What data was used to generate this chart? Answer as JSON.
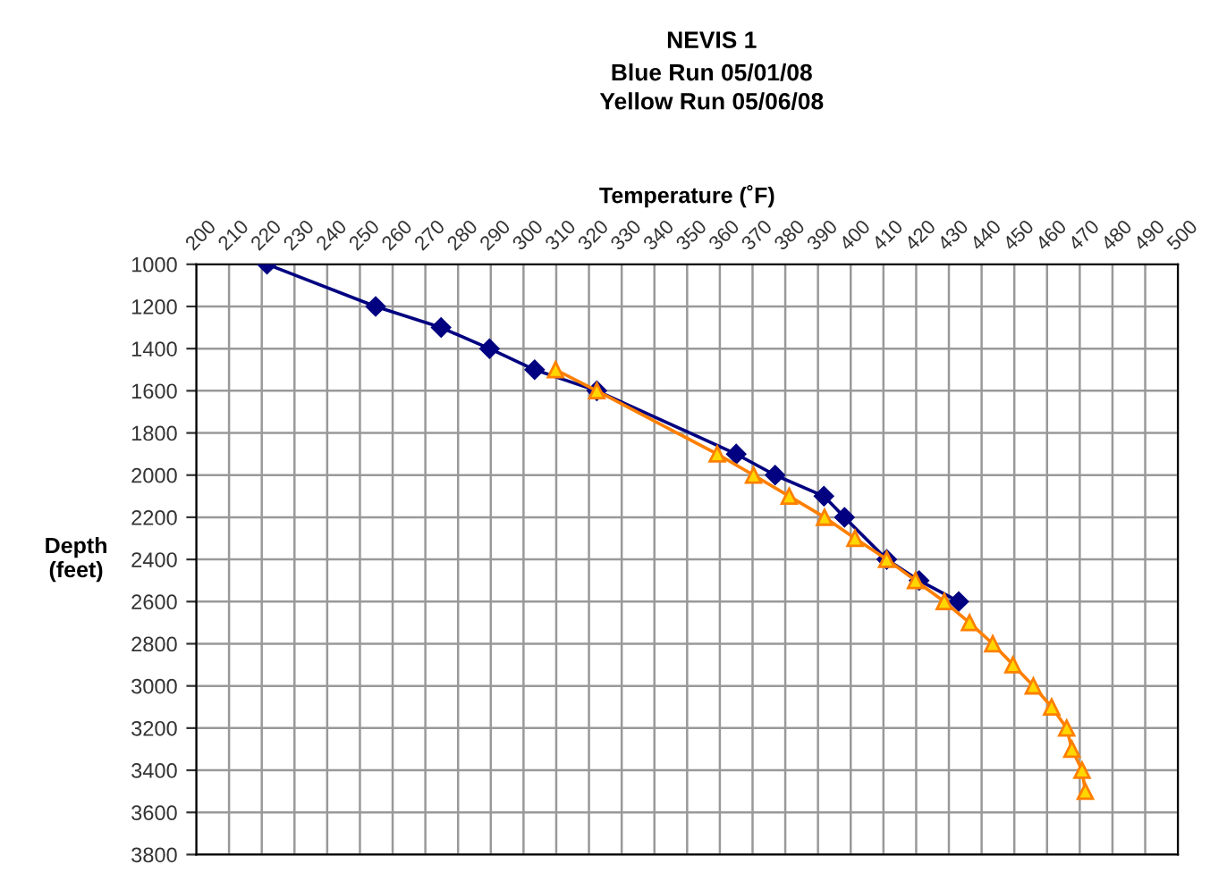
{
  "chart_data": {
    "type": "line",
    "title": "NEVIS 1",
    "subtitle": "Blue Run 05/01/08\nYellow Run 05/06/08",
    "xlabel": "Temperature (˚F)",
    "ylabel": "Depth\n(feet)",
    "series": [
      {
        "color": "#000080",
        "marker": "diamond",
        "x": [
          221.6,
          254.8,
          274.8,
          289.6,
          303.4,
          322.4,
          365,
          376.9,
          391.8,
          398.1,
          411,
          420.9,
          433
        ],
        "values": [
          1000,
          1200,
          1300,
          1400,
          1500,
          1600,
          1900,
          2000,
          2100,
          2200,
          2400,
          2500,
          2600
        ]
      },
      {
        "color": "#ff7f00",
        "marker": "triangle",
        "x": [
          309.8,
          322.4,
          359.2,
          370.3,
          381.2,
          392,
          401.3,
          411,
          419.8,
          428.6,
          436.3,
          443.4,
          449.6,
          455.8,
          461.4,
          466,
          467.6,
          470.7,
          471.7
        ],
        "values": [
          1500,
          1600,
          1900,
          2000,
          2100,
          2200,
          2300,
          2400,
          2500,
          2600,
          2700,
          2800,
          2900,
          3000,
          3100,
          3200,
          3300,
          3400,
          3500
        ]
      }
    ],
    "xlim": [
      200,
      500
    ],
    "xticks": [
      200,
      210,
      220,
      230,
      240,
      250,
      260,
      270,
      280,
      290,
      300,
      310,
      320,
      330,
      340,
      350,
      360,
      370,
      380,
      390,
      400,
      410,
      420,
      430,
      440,
      450,
      460,
      470,
      480,
      490,
      500
    ],
    "ylim": [
      3800,
      1000
    ],
    "yticks": [
      1000,
      1200,
      1400,
      1600,
      1800,
      2000,
      2200,
      2400,
      2600,
      2800,
      3000,
      3200,
      3400,
      3600,
      3800
    ],
    "grid": true,
    "line_style": "solid"
  }
}
